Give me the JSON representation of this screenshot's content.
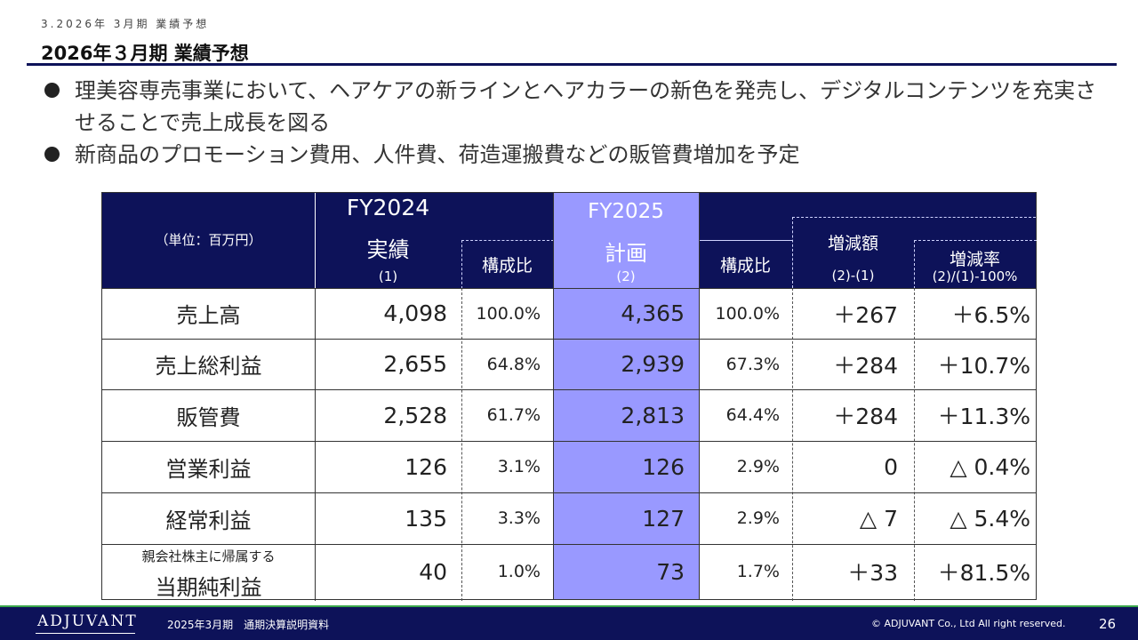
{
  "header": {
    "breadcrumb": "3.2026年 3月期 業績予想",
    "title": "2026年３月期 業績予想"
  },
  "bullets": [
    "理美容専売事業において、ヘアケアの新ラインとヘアカラーの新色を発売し、デジタルコンテンツを充実させることで売上成長を図る",
    "新商品のプロモーション費用、人件費、荷造運搬費などの販管費増加を予定"
  ],
  "table": {
    "unit_label": "（単位：百万円）",
    "fy2024": {
      "year": "FY2024",
      "label": "実績",
      "code": "(1)"
    },
    "fy2025": {
      "year": "FY2025",
      "label": "計画",
      "code": "(2)"
    },
    "ratio_label_1": "構成比",
    "ratio_label_2": "構成比",
    "diff_header": {
      "label": "増減額",
      "formula": "(2)-(1)"
    },
    "rate_header": {
      "label": "増減率",
      "formula": "(2)/(1)-100%"
    },
    "rows": [
      {
        "label": "売上高",
        "fy2024": "4,098",
        "ratio2024": "100.0%",
        "fy2025": "4,365",
        "ratio2025": "100.0%",
        "diff": "＋267",
        "rate": "＋6.5%"
      },
      {
        "label": "売上総利益",
        "fy2024": "2,655",
        "ratio2024": "64.8%",
        "fy2025": "2,939",
        "ratio2025": "67.3%",
        "diff": "＋284",
        "rate": "＋10.7%"
      },
      {
        "label": "販管費",
        "fy2024": "2,528",
        "ratio2024": "61.7%",
        "fy2025": "2,813",
        "ratio2025": "64.4%",
        "diff": "＋284",
        "rate": "＋11.3%"
      },
      {
        "label": "営業利益",
        "fy2024": "126",
        "ratio2024": "3.1%",
        "fy2025": "126",
        "ratio2025": "2.9%",
        "diff": "0",
        "rate": "△ 0.4%"
      },
      {
        "label": "経常利益",
        "fy2024": "135",
        "ratio2024": "3.3%",
        "fy2025": "127",
        "ratio2025": "2.9%",
        "diff": "△ 7",
        "rate": "△ 5.4%"
      },
      {
        "label_small": "親会社株主に帰属する",
        "label": "当期純利益",
        "fy2024": "40",
        "ratio2024": "1.0%",
        "fy2025": "73",
        "ratio2025": "1.7%",
        "diff": "＋33",
        "rate": "＋81.5%"
      }
    ]
  },
  "footer": {
    "logo": "ADJUVANT",
    "document": "2025年3月期　通期決算説明資料",
    "copyright": "© ADJUVANT Co., Ltd All right reserved.",
    "page_number": "26"
  },
  "colors": {
    "navy": "#0d1259",
    "plan_column": "#9999ff",
    "footer_accent": "#3aa64a"
  }
}
